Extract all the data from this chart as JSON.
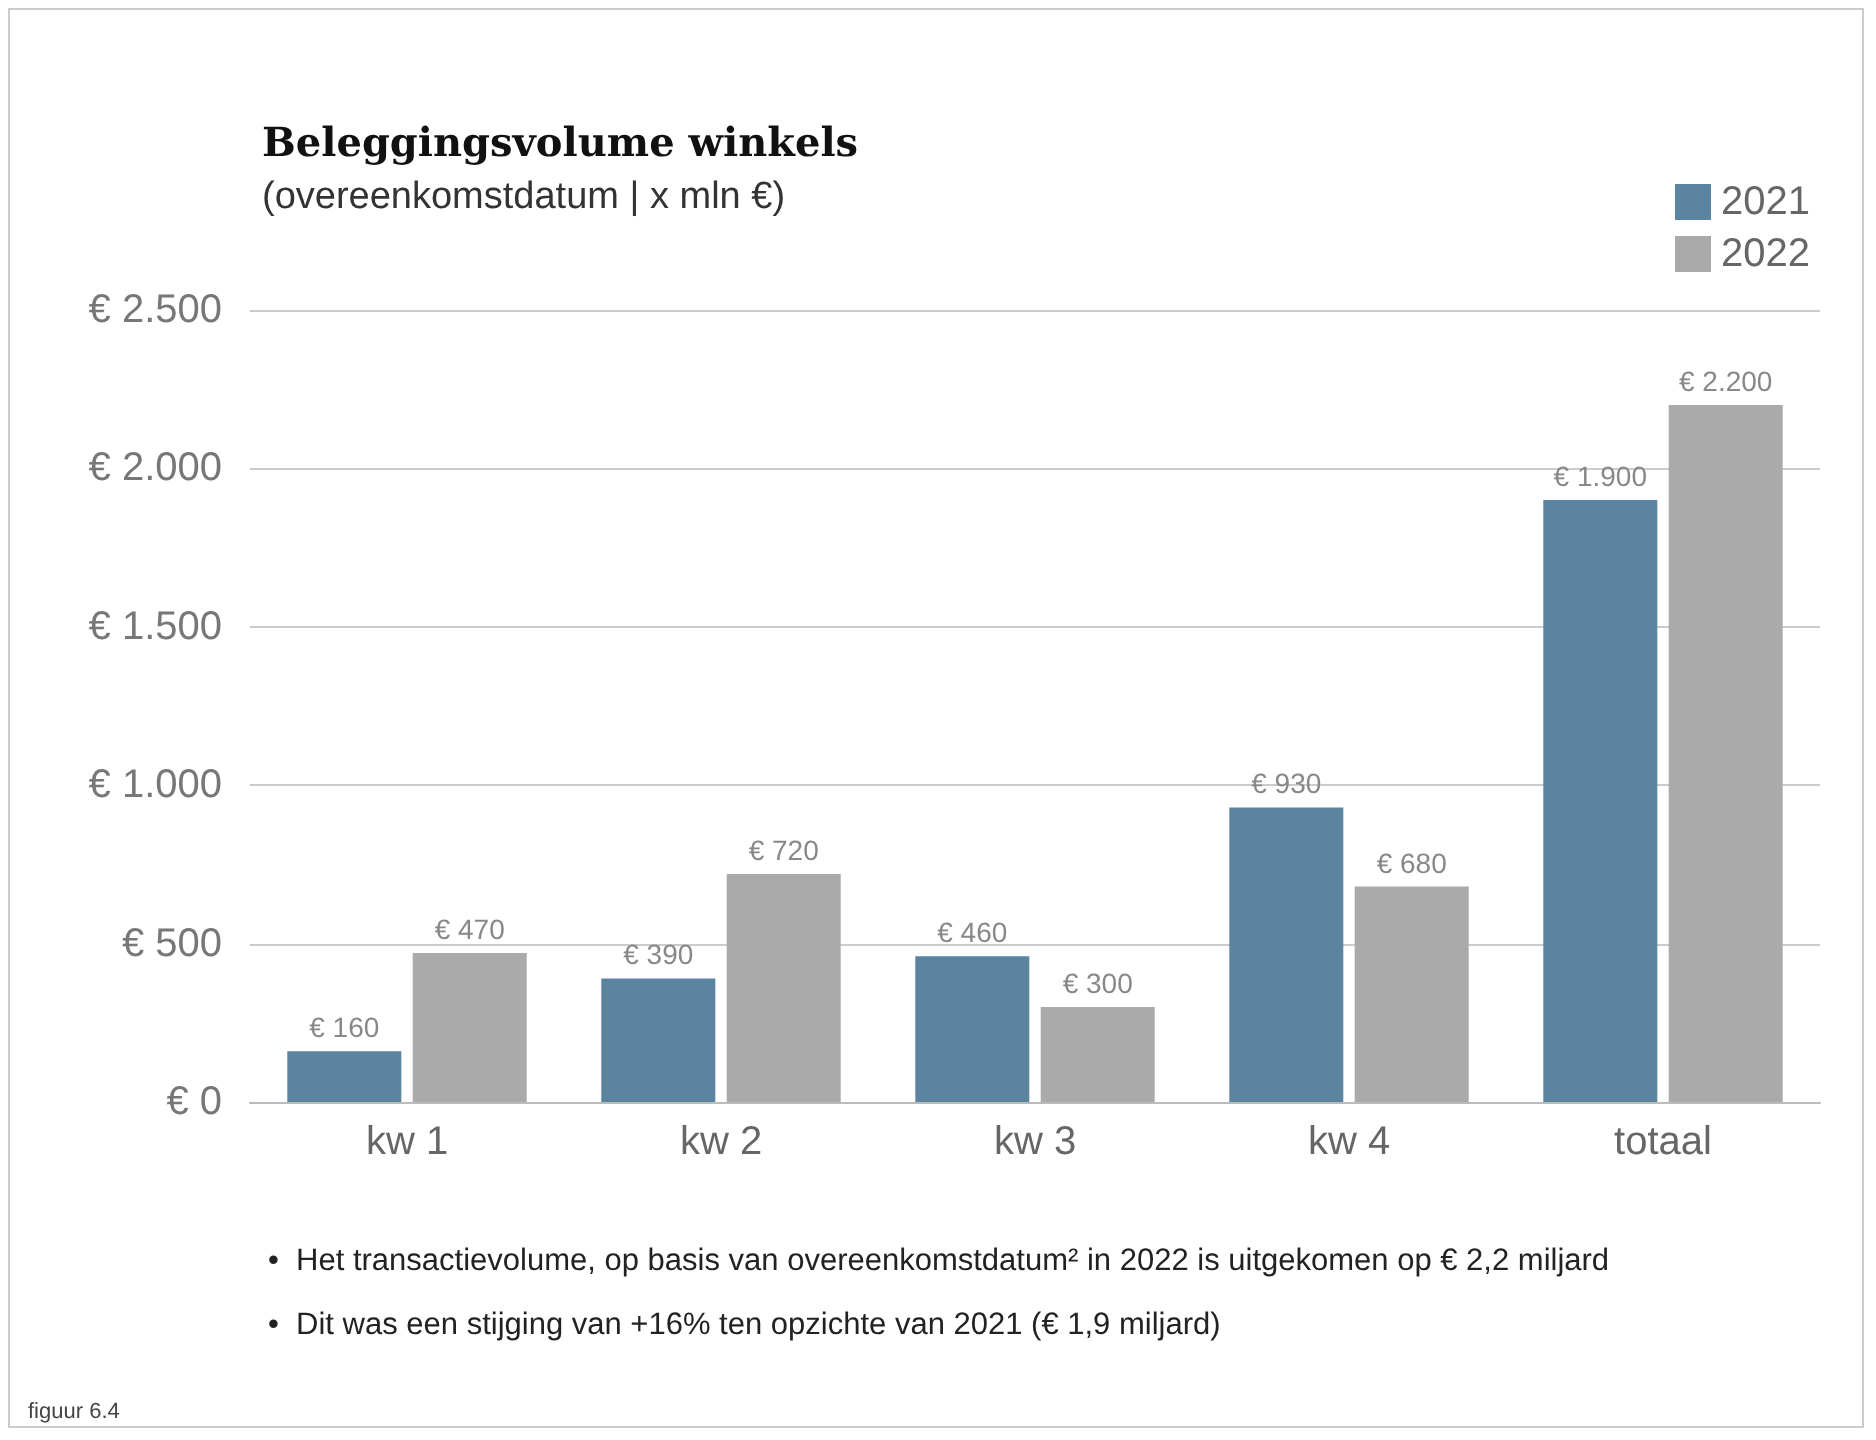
{
  "chart_data": {
    "type": "bar",
    "title": "Beleggingsvolume winkels",
    "subtitle": "(overeenkomstdatum | x mln €)",
    "categories": [
      "kw 1",
      "kw 2",
      "kw 3",
      "kw 4",
      "totaal"
    ],
    "series": [
      {
        "name": "2021",
        "color": "#5b84a0",
        "values": [
          160,
          390,
          460,
          930,
          1900
        ],
        "value_labels": [
          "€ 160",
          "€ 390",
          "€ 460",
          "€ 930",
          "€ 1.900"
        ]
      },
      {
        "name": "2022",
        "color": "#aaaaaa",
        "values": [
          470,
          720,
          300,
          680,
          2200
        ],
        "value_labels": [
          "€ 470",
          "€ 720",
          "€ 300",
          "€ 680",
          "€ 2.200"
        ]
      }
    ],
    "ylim": [
      0,
      2500
    ],
    "yticks": [
      {
        "value": 0,
        "label": "€ 0"
      },
      {
        "value": 500,
        "label": "€ 500"
      },
      {
        "value": 1000,
        "label": "€ 1.000"
      },
      {
        "value": 1500,
        "label": "€ 1.500"
      },
      {
        "value": 2000,
        "label": "€ 2.000"
      },
      {
        "value": 2500,
        "label": "€ 2.500"
      }
    ],
    "grid": "y",
    "legend": "top right",
    "annotations": [
      "•  Het transactievolume, op basis van overeenkomstdatum² in 2022 is uitgekomen op € 2,2 miljard",
      "•  Dit was een stijging van +16% ten opzichte van 2021 (€ 1,9 miljard)",
      "figuur 6.4"
    ]
  }
}
